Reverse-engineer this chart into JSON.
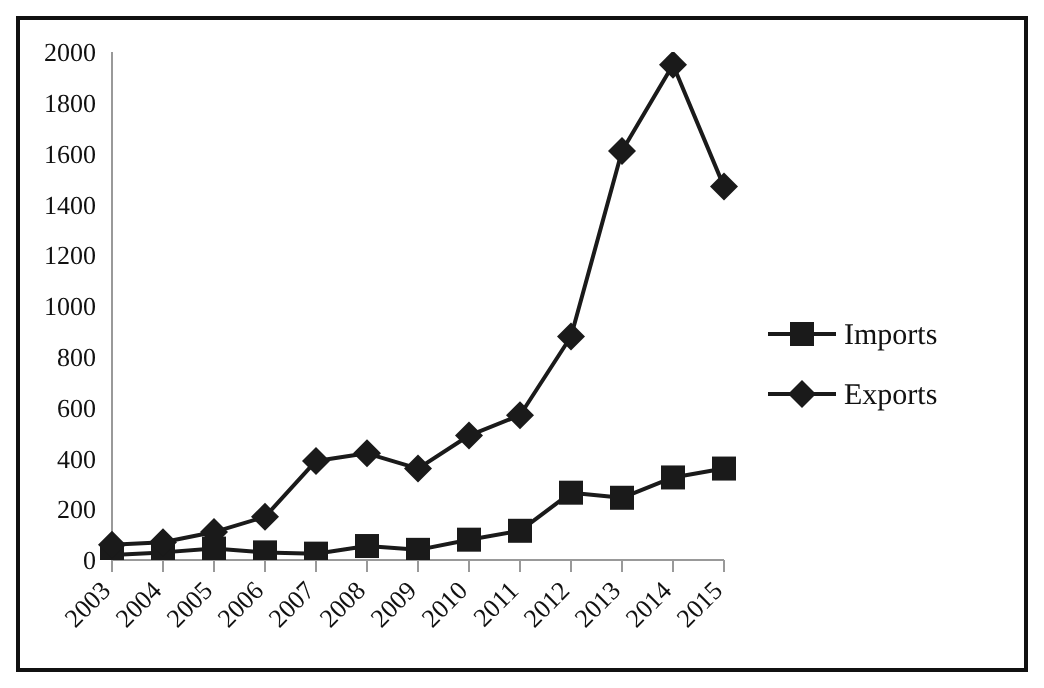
{
  "chart_data": {
    "type": "line",
    "categories": [
      "2003",
      "2004",
      "2005",
      "2006",
      "2007",
      "2008",
      "2009",
      "2010",
      "2011",
      "2012",
      "2013",
      "2014",
      "2015"
    ],
    "series": [
      {
        "name": "Imports",
        "color": "#1a1a1a",
        "marker": "square",
        "values": [
          20,
          30,
          45,
          30,
          25,
          55,
          40,
          80,
          115,
          265,
          245,
          325,
          360
        ]
      },
      {
        "name": "Exports",
        "color": "#1a1a1a",
        "marker": "diamond",
        "values": [
          60,
          70,
          110,
          170,
          390,
          420,
          360,
          490,
          570,
          880,
          1610,
          1950,
          1470
        ]
      }
    ],
    "ylim": [
      0,
      2000
    ],
    "yticks": [
      0,
      200,
      400,
      600,
      800,
      1000,
      1200,
      1400,
      1600,
      1800,
      2000
    ],
    "grid": false,
    "legend": "right",
    "line_style": "solid"
  }
}
